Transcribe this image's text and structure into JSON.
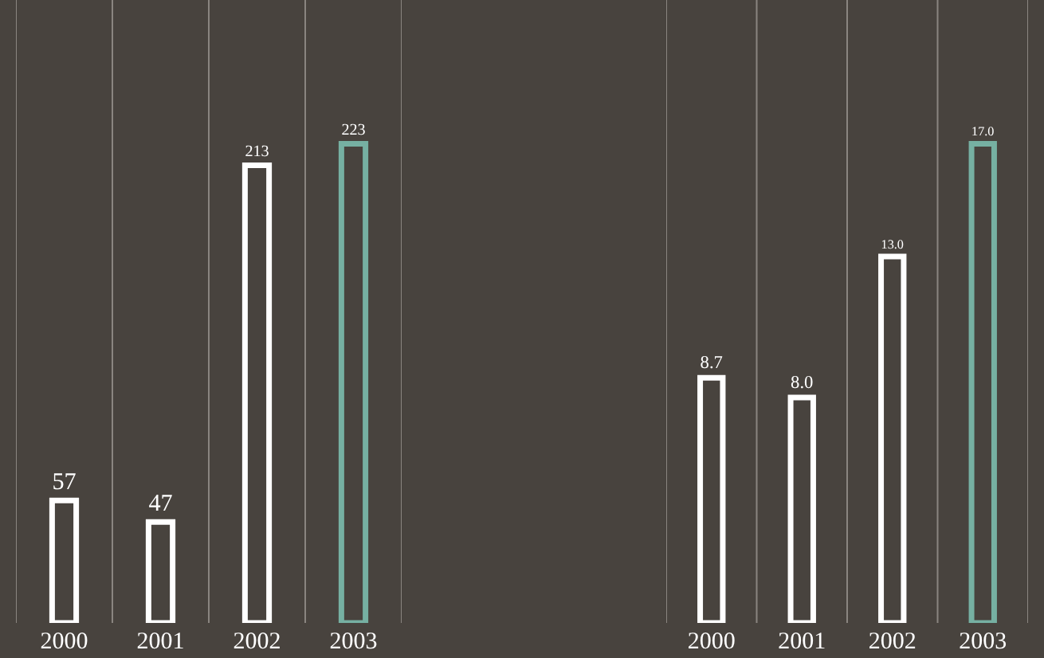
{
  "chart_data": [
    {
      "type": "bar",
      "categories": [
        "2000",
        "2001",
        "2002",
        "2003"
      ],
      "values": [
        57,
        47,
        213,
        223
      ],
      "colors": [
        "#ffffff",
        "#ffffff",
        "#ffffff",
        "#76b0a2"
      ],
      "data_labels": true,
      "grid": "x",
      "tick_labels": "x"
    },
    {
      "type": "bar",
      "categories": [
        "2000",
        "2001",
        "2002",
        "2003"
      ],
      "values": [
        8.7,
        8.0,
        13.0,
        17.0
      ],
      "value_labels": [
        "8.7",
        "8.0",
        "13.0",
        "17.0"
      ],
      "colors": [
        "#ffffff",
        "#ffffff",
        "#ffffff",
        "#76b0a2"
      ],
      "grid": "x",
      "tick_labels": "x"
    }
  ]
}
